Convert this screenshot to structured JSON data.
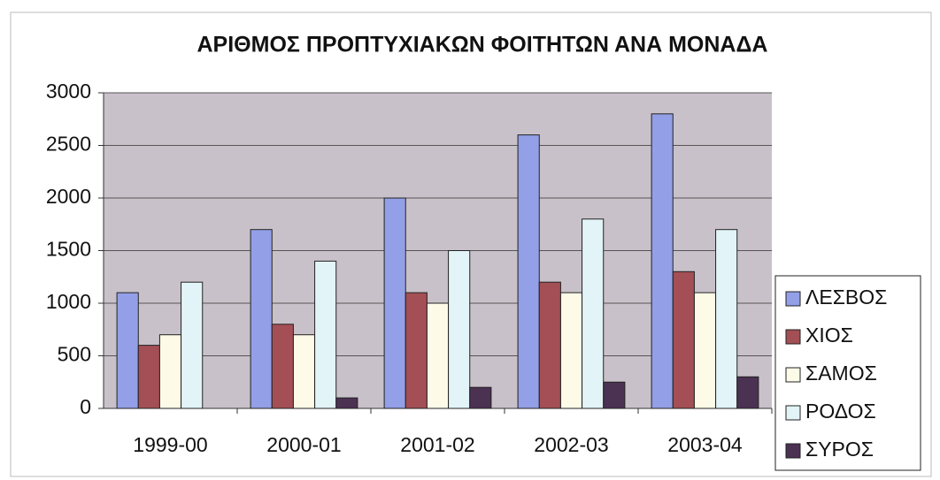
{
  "chart_data": {
    "type": "bar",
    "title": "ΑΡΙΘΜΟΣ ΠΡΟΠΤΥΧΙΑΚΩΝ ΦΟΙΤΗΤΩΝ ΑΝΑ ΜΟΝΑΔΑ",
    "categories": [
      "1999-00",
      "2000-01",
      "2001-02",
      "2002-03",
      "2003-04"
    ],
    "series": [
      {
        "name": "ΛΕΣΒΟΣ",
        "color": "#939fe6",
        "values": [
          1100,
          1700,
          2000,
          2600,
          2800
        ]
      },
      {
        "name": "ΧΙΟΣ",
        "color": "#a34f55",
        "values": [
          600,
          800,
          1100,
          1200,
          1300
        ]
      },
      {
        "name": "ΣΑΜΟΣ",
        "color": "#fdfbe8",
        "values": [
          700,
          700,
          1000,
          1100,
          1100
        ]
      },
      {
        "name": "ΡΟΔΟΣ",
        "color": "#e2f4f7",
        "values": [
          1200,
          1400,
          1500,
          1800,
          1700
        ]
      },
      {
        "name": "ΣΥΡΟΣ",
        "color": "#4b3152",
        "values": [
          0,
          100,
          200,
          250,
          300
        ]
      }
    ],
    "ylim": [
      0,
      3000
    ],
    "yticks": [
      0,
      500,
      1000,
      1500,
      2000,
      2500,
      3000
    ],
    "grid": true,
    "legend": "right"
  }
}
